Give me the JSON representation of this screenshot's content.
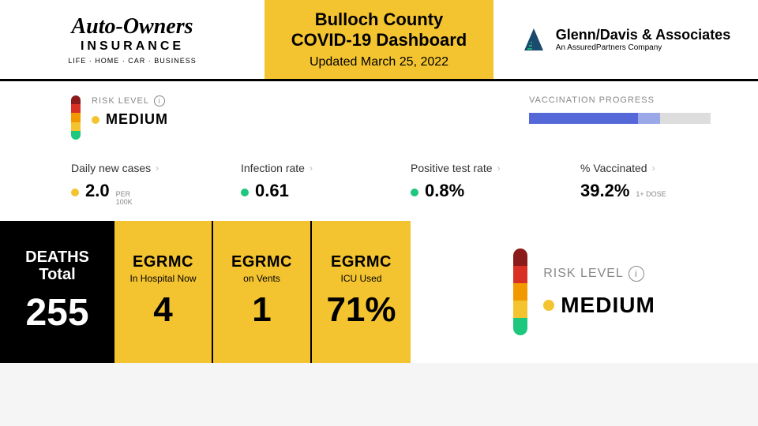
{
  "header": {
    "sponsor_left": {
      "name": "Auto-Owners",
      "sub": "INSURANCE",
      "tag": "LIFE · HOME · CAR · BUSINESS"
    },
    "title_line1": "Bulloch County",
    "title_line2": "COVID-19 Dashboard",
    "subtitle": "Updated March 25, 2022",
    "sponsor_right": {
      "name": "Glenn/Davis & Associates",
      "sub": "An AssuredPartners Company",
      "logo_color": "#1a4a6e"
    },
    "yellow": "#f4c430"
  },
  "risk": {
    "label": "RISK LEVEL",
    "value": "MEDIUM",
    "dot_color": "#f4c430",
    "segments": [
      "#8b1a1a",
      "#d93025",
      "#f29900",
      "#f4c430",
      "#1ec77e"
    ]
  },
  "vaccination": {
    "label": "VACCINATION PROGRESS",
    "fill1_pct": 60,
    "fill2_pct": 12,
    "bar_bg": "#dddddd",
    "fill1_color": "#5568d8",
    "fill2_color": "#9aa8e8"
  },
  "metrics": [
    {
      "label": "Daily new cases",
      "value": "2.0",
      "suffix_line1": "PER",
      "suffix_line2": "100K",
      "dot": "#f4c430"
    },
    {
      "label": "Infection rate",
      "value": "0.61",
      "suffix_line1": "",
      "suffix_line2": "",
      "dot": "#1ec77e"
    },
    {
      "label": "Positive test rate",
      "value": "0.8%",
      "suffix_line1": "",
      "suffix_line2": "",
      "dot": "#1ec77e"
    },
    {
      "label": "% Vaccinated",
      "value": "39.2%",
      "suffix_line1": "1+ DOSE",
      "suffix_line2": "",
      "dot": ""
    }
  ],
  "deaths": {
    "label_line1": "DEATHS",
    "label_line2": "Total",
    "value": "255"
  },
  "egrmc": [
    {
      "title": "EGRMC",
      "sub": "In Hospital Now",
      "value": "4"
    },
    {
      "title": "EGRMC",
      "sub": "on Vents",
      "value": "1"
    },
    {
      "title": "EGRMC",
      "sub": "ICU Used",
      "value": "71%"
    }
  ]
}
